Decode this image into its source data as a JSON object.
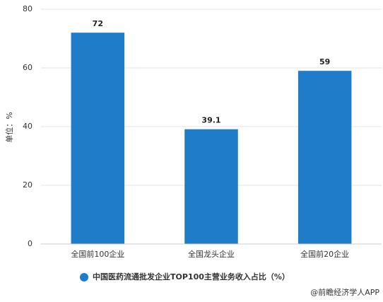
{
  "chart_data": {
    "type": "bar",
    "y_label": "单位：%",
    "categories": [
      "全国前100企业",
      "全国龙头企业",
      "全国前20企业"
    ],
    "series": [
      {
        "name": "中国医药流通批发企业TOP100主营业务收入占比（%）",
        "color": "#1f7cc8",
        "values": [
          72,
          39.1,
          59
        ]
      }
    ],
    "ylim": [
      0,
      80
    ],
    "yticks": [
      0,
      20,
      40,
      60,
      80
    ],
    "grid": true,
    "source": "@前瞻经济学人APP"
  }
}
